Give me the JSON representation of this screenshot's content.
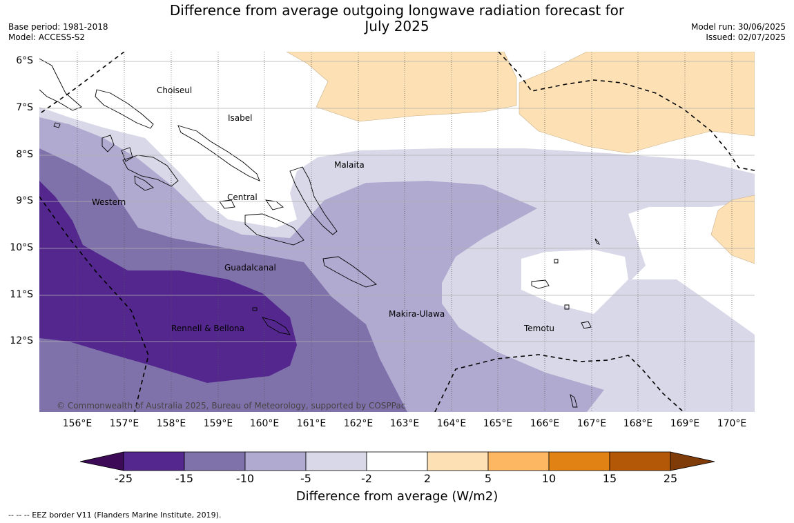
{
  "title_line1": "Difference from average outgoing longwave radiation forecast for",
  "title_line2": "July 2025",
  "base_period": "Base period: 1981-2018",
  "model": "Model: ACCESS-S2",
  "model_run": "Model run: 30/06/2025",
  "issued": "Issued: 02/07/2025",
  "lat_labels": [
    "6°S",
    "7°S",
    "8°S",
    "9°S",
    "10°S",
    "11°S",
    "12°S"
  ],
  "lon_labels": [
    "156°E",
    "157°E",
    "158°E",
    "159°E",
    "160°E",
    "161°E",
    "162°E",
    "163°E",
    "164°E",
    "165°E",
    "166°E",
    "167°E",
    "168°E",
    "169°E",
    "170°E"
  ],
  "regions": [
    "Choiseul",
    "Isabel",
    "Malaita",
    "Central",
    "Western",
    "Guadalcanal",
    "Makira-Ulawa",
    "Rennell & Bellona",
    "Temotu"
  ],
  "copyright": "© Commonwealth of Australia 2025, Bureau of Meteorology, supported by COSPPac",
  "colorbar": {
    "ticks": [
      "-25",
      "-15",
      "-10",
      "-5",
      "-2",
      "2",
      "5",
      "10",
      "15",
      "25"
    ],
    "title": "Difference from average (W/m2)",
    "colors": [
      "#3d0a57",
      "#54278f",
      "#7f72aa",
      "#b0a9d0",
      "#d9d8e8",
      "#ffffff",
      "#fde0b4",
      "#fdb763",
      "#e08214",
      "#b35806",
      "#7f3b08"
    ]
  },
  "footnote": "--  --  -- EEZ border V11 (Flanders Marine Institute, 2019)."
}
